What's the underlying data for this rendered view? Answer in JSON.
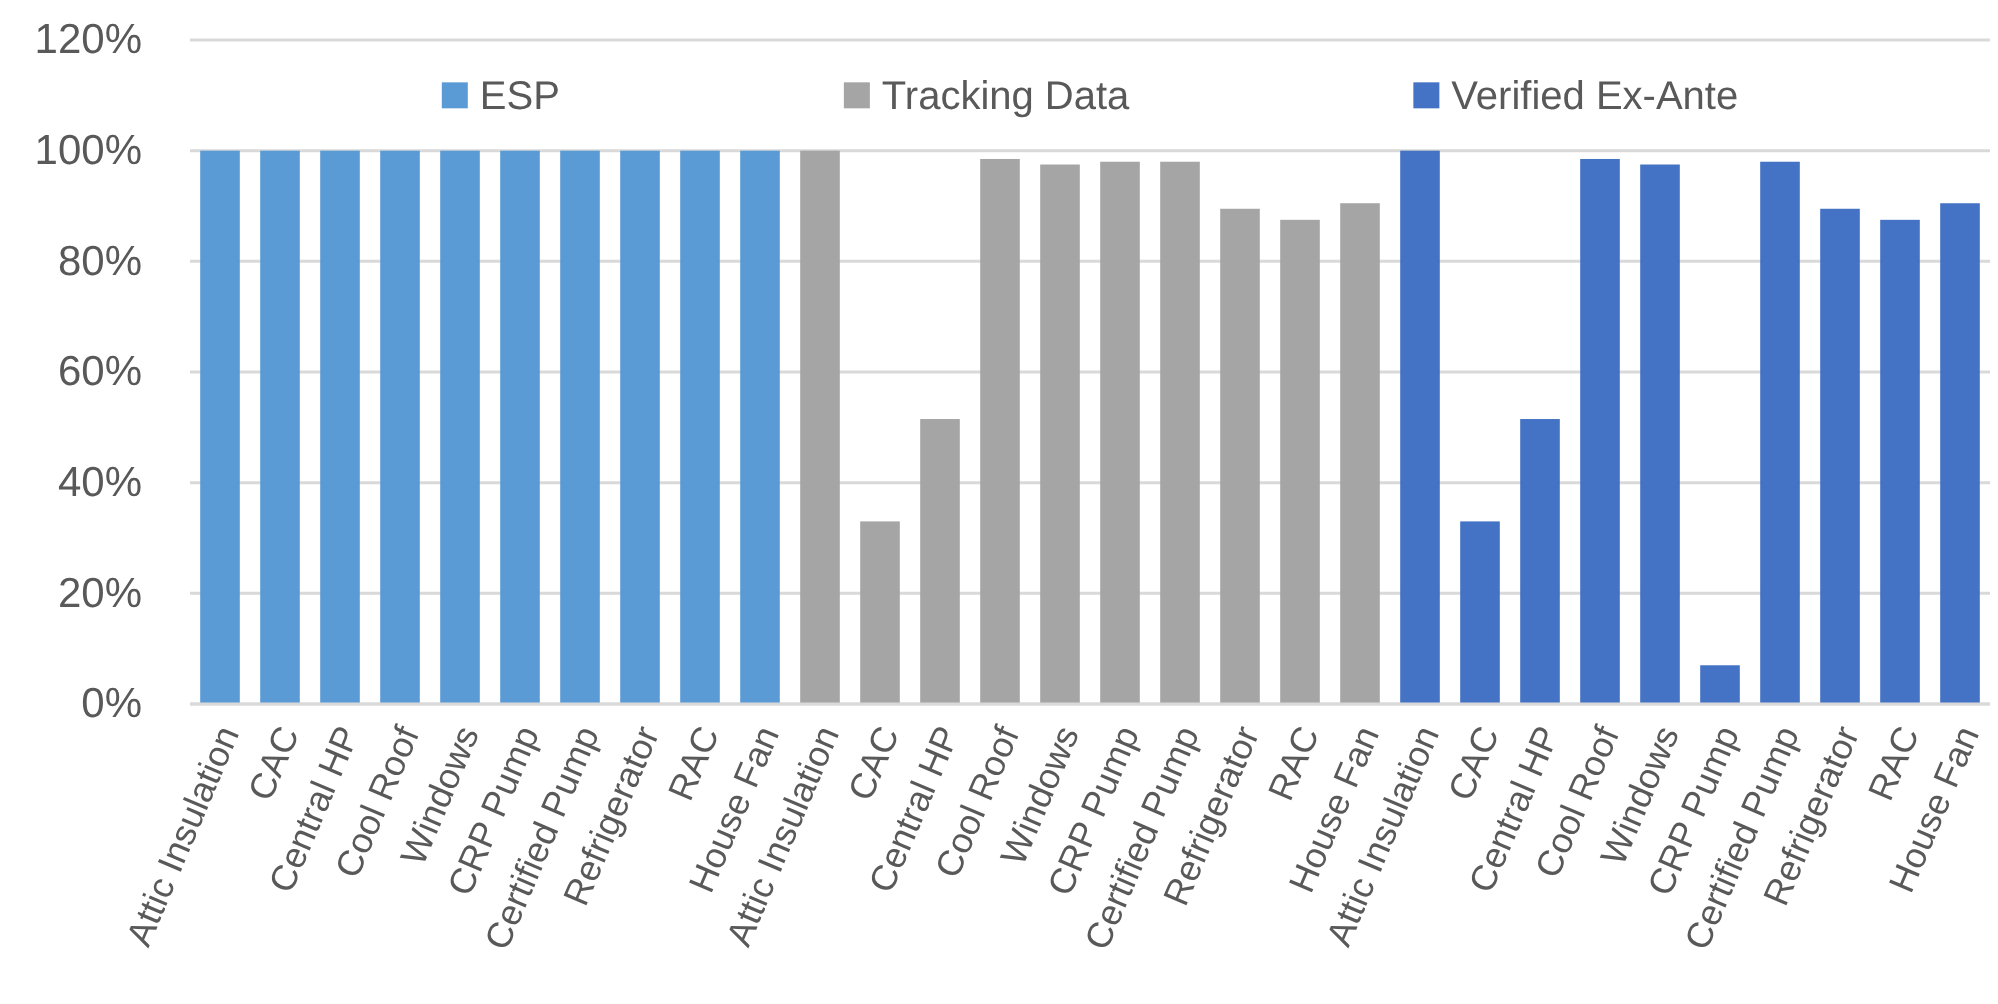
{
  "chart_data": {
    "type": "bar",
    "stacked": true,
    "grid": "y",
    "legend": "top",
    "categories": [
      "Attic Insulation",
      "CAC",
      "Central HP",
      "Cool Roof",
      "Windows",
      "CRP Pump",
      "Certified Pump",
      "Refrigerator",
      "RAC",
      "House Fan",
      "Attic Insulation",
      "CAC",
      "Central HP",
      "Cool Roof",
      "Windows",
      "CRP Pump",
      "Certified Pump",
      "Refrigerator",
      "RAC",
      "House Fan",
      "Attic Insulation",
      "CAC",
      "Central HP",
      "Cool Roof",
      "Windows",
      "CRP Pump",
      "Certified Pump",
      "Refrigerator",
      "RAC",
      "House Fan"
    ],
    "series": [
      {
        "name": "ESP",
        "color": "#5b9bd5",
        "values": [
          100,
          100,
          100,
          100,
          100,
          100,
          100,
          100,
          100,
          100,
          null,
          null,
          null,
          null,
          null,
          null,
          null,
          null,
          null,
          null,
          null,
          null,
          null,
          null,
          null,
          null,
          null,
          null,
          null,
          null
        ]
      },
      {
        "name": "Tracking Data",
        "color": "#a5a5a5",
        "values": [
          null,
          null,
          null,
          null,
          null,
          null,
          null,
          null,
          null,
          null,
          100,
          33,
          51.5,
          98.5,
          97.5,
          98,
          98,
          89.5,
          87.5,
          90.5,
          null,
          null,
          null,
          null,
          null,
          null,
          null,
          null,
          null,
          null
        ]
      },
      {
        "name": "Verified Ex-Ante",
        "color": "#4472c4",
        "values": [
          null,
          null,
          null,
          null,
          null,
          null,
          null,
          null,
          null,
          null,
          null,
          null,
          null,
          null,
          null,
          null,
          null,
          null,
          null,
          null,
          100,
          33,
          51.5,
          98.5,
          97.5,
          7,
          98,
          89.5,
          87.5,
          90.5
        ]
      }
    ],
    "ylim": [
      0,
      120
    ],
    "yticks": [
      {
        "value": 0,
        "label": "0%"
      },
      {
        "value": 20,
        "label": "20%"
      },
      {
        "value": 40,
        "label": "40%"
      },
      {
        "value": 60,
        "label": "60%"
      },
      {
        "value": 80,
        "label": "80%"
      },
      {
        "value": 100,
        "label": "100%"
      },
      {
        "value": 120,
        "label": "120%"
      }
    ]
  }
}
